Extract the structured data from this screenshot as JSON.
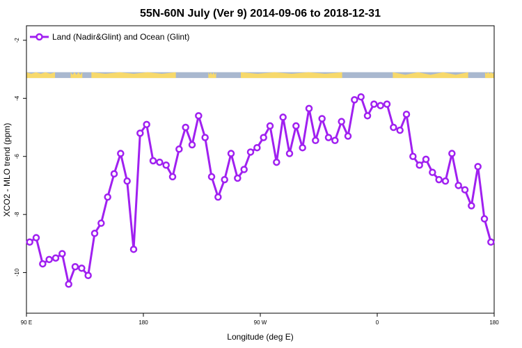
{
  "chart_data": {
    "type": "line",
    "title": "55N-60N July (Ver 9)   2014-09-06 to 2018-12-31",
    "xlabel": "Longitude (deg E)",
    "ylabel": "XCO2 - MLO trend (ppm)",
    "xlim": [
      90,
      450
    ],
    "ylim": [
      -11.4,
      -1.5
    ],
    "x_ticks": [
      {
        "value": 90,
        "label": "90 E"
      },
      {
        "value": 180,
        "label": "180"
      },
      {
        "value": 270,
        "label": "90 W"
      },
      {
        "value": 360,
        "label": "0"
      },
      {
        "value": 450,
        "label": "180"
      }
    ],
    "y_ticks": [
      -2,
      -4,
      -6,
      -8,
      -10
    ],
    "y_tick_labels": [
      "-2",
      "-4",
      "-6",
      "-8",
      "-10"
    ],
    "grid": false,
    "legend_position": "top-left",
    "land_ocean_strip": {
      "ocean_color": "#a9b8cf",
      "land_color": "#f7d96b",
      "y_range": [
        -3.3,
        -3.1
      ]
    },
    "series": [
      {
        "name": "Land (Nadir&Glint) and Ocean (Glint)",
        "color": "#a020f0",
        "x": [
          92.5,
          97.5,
          102.5,
          107.5,
          112.5,
          117.5,
          122.5,
          127.5,
          132.5,
          137.5,
          142.5,
          147.5,
          152.5,
          157.5,
          162.5,
          167.5,
          172.5,
          177.5,
          182.5,
          187.5,
          192.5,
          197.5,
          202.5,
          207.5,
          212.5,
          217.5,
          222.5,
          227.5,
          232.5,
          237.5,
          242.5,
          247.5,
          252.5,
          257.5,
          262.5,
          267.5,
          272.5,
          277.5,
          282.5,
          287.5,
          292.5,
          297.5,
          302.5,
          307.5,
          312.5,
          317.5,
          322.5,
          327.5,
          332.5,
          337.5,
          342.5,
          347.5,
          352.5,
          357.5,
          362.5,
          367.5,
          372.5,
          377.5,
          382.5,
          387.5,
          392.5,
          397.5,
          402.5,
          407.5,
          412.5,
          417.5,
          422.5,
          427.5,
          432.5,
          437.5,
          442.5,
          447.5
        ],
        "values": [
          -8.95,
          -8.8,
          -9.7,
          -9.55,
          -9.5,
          -9.35,
          -10.4,
          -9.8,
          -9.85,
          -10.1,
          -8.65,
          -8.3,
          -7.4,
          -6.6,
          -5.9,
          -6.85,
          -9.2,
          -5.2,
          -4.9,
          -6.15,
          -6.2,
          -6.3,
          -6.7,
          -5.75,
          -5.0,
          -5.6,
          -4.6,
          -5.35,
          -6.7,
          -7.4,
          -6.8,
          -5.9,
          -6.75,
          -6.45,
          -5.85,
          -5.7,
          -5.35,
          -4.95,
          -6.2,
          -4.65,
          -5.9,
          -4.95,
          -5.7,
          -4.35,
          -5.45,
          -4.7,
          -5.35,
          -5.45,
          -4.8,
          -5.3,
          -4.05,
          -3.95,
          -4.6,
          -4.2,
          -4.25,
          -4.2,
          -5.0,
          -5.1,
          -4.55,
          -6.0,
          -6.3,
          -6.1,
          -6.55,
          -6.8,
          -6.85,
          -5.9,
          -7.0,
          -7.15,
          -7.7,
          -6.35,
          -8.15,
          -8.95
        ]
      }
    ]
  }
}
